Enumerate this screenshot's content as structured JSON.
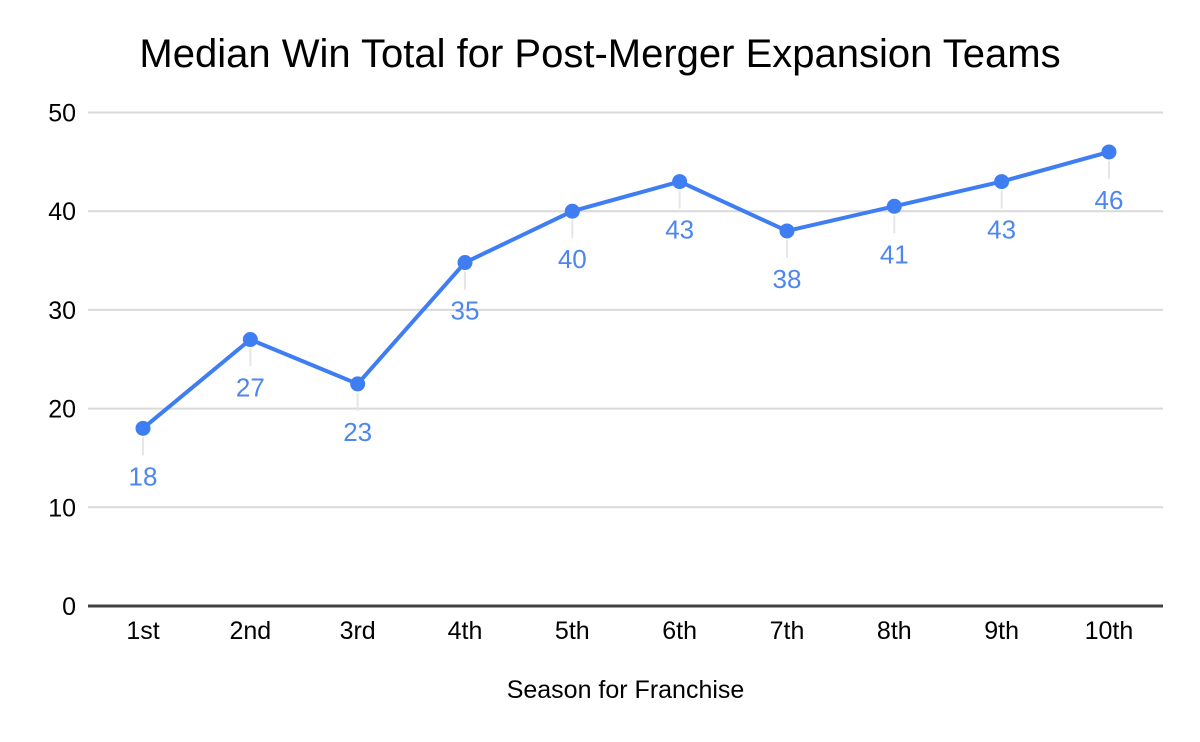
{
  "chart_data": {
    "type": "line",
    "title": "Median Win Total for Post-Merger Expansion Teams",
    "xlabel": "Season for Franchise",
    "ylabel": "",
    "categories": [
      "1st",
      "2nd",
      "3rd",
      "4th",
      "5th",
      "6th",
      "7th",
      "8th",
      "9th",
      "10th"
    ],
    "series": [
      {
        "name": "Median Win Total",
        "values": [
          18,
          27,
          23,
          35,
          40,
          43,
          38,
          41,
          43,
          46
        ],
        "plotted_values": [
          18,
          27,
          22.5,
          34.8,
          40,
          43,
          38,
          40.5,
          43,
          46
        ],
        "point_labels": [
          "18",
          "27",
          "23",
          "35",
          "40",
          "43",
          "38",
          "41",
          "43",
          "46"
        ]
      }
    ],
    "ylim": [
      0,
      50
    ],
    "yticks": [
      0,
      10,
      20,
      30,
      40,
      50
    ],
    "grid": true,
    "legend": "none",
    "colors": {
      "line": "#3e7df2",
      "point": "#3e7df2",
      "point_label": "#4e86f0",
      "grid": "#d9d9d9",
      "axis": "#424242",
      "leader": "#e6e6e6",
      "text": "#000000",
      "background": "#ffffff"
    }
  }
}
